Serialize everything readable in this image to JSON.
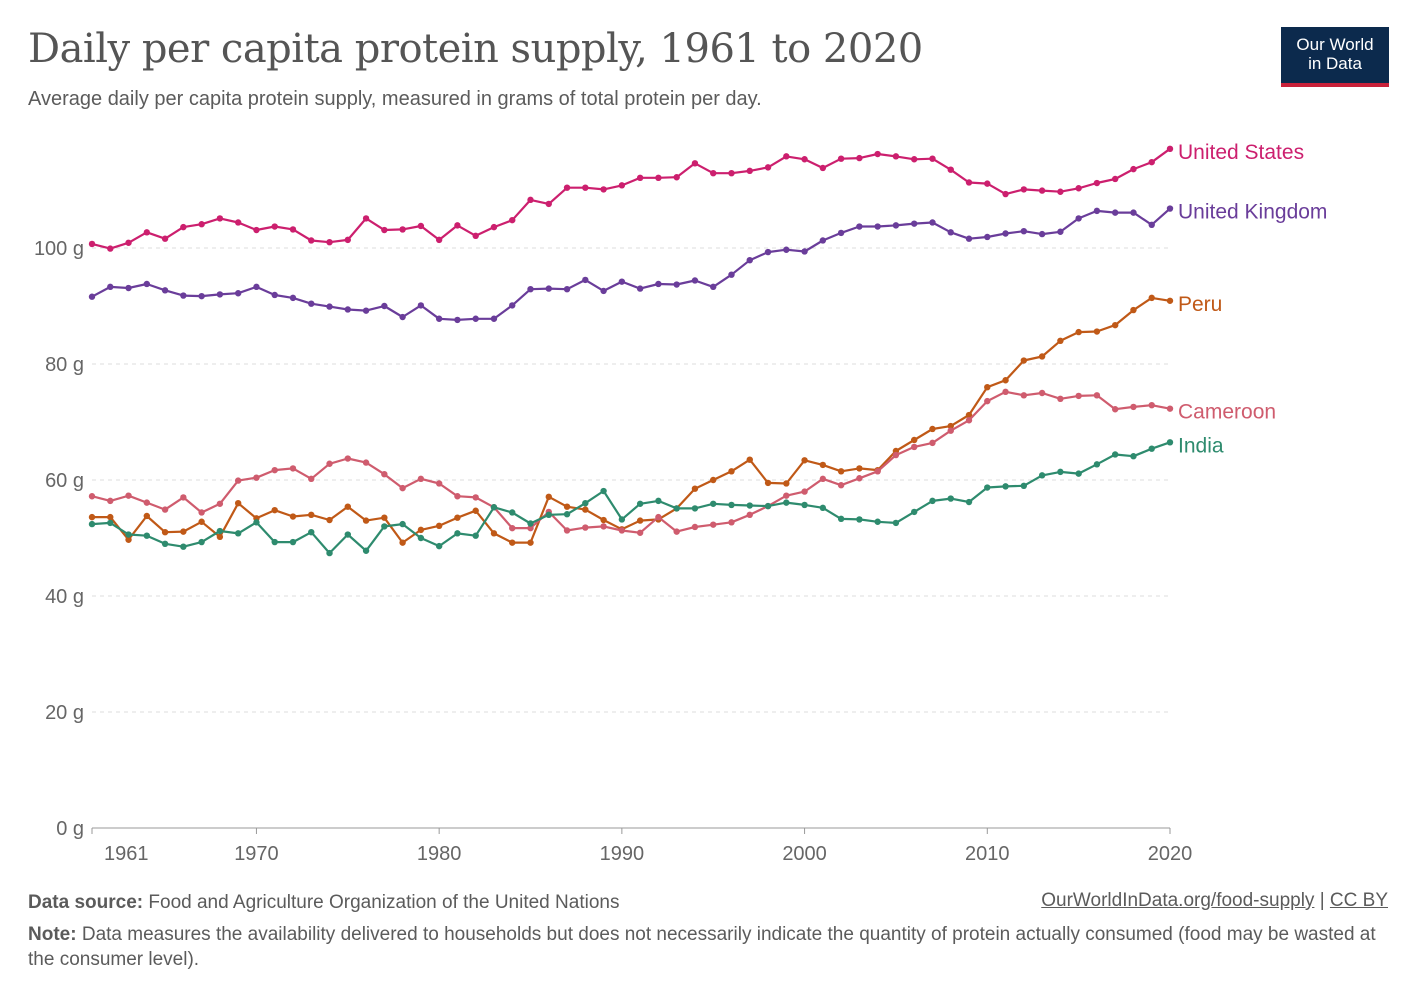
{
  "header": {
    "title": "Daily per capita protein supply, 1961 to 2020",
    "subtitle": "Average daily per capita protein supply, measured in grams of total protein per day.",
    "logo_line1": "Our World",
    "logo_line2": "in Data"
  },
  "footer": {
    "source_label": "Data source:",
    "source_text": "Food and Agriculture Organization of the United Nations",
    "link_text": "OurWorldInData.org/food-supply",
    "separator": "|",
    "license_text": "CC BY",
    "note_label": "Note:",
    "note_text": "Data measures the availability delivered to households but does not necessarily indicate the quantity of protein actually consumed (food may be wasted at the consumer level)."
  },
  "colors": {
    "logo_bg": "#0c2a4d",
    "logo_accent": "#c9213a",
    "grid": "#dddddd",
    "axis": "#999999"
  },
  "chart_data": {
    "type": "line",
    "title": "Daily per capita protein supply, 1961 to 2020",
    "xlabel": "",
    "ylabel": "",
    "xlim": [
      1961,
      2020
    ],
    "ylim": [
      0,
      120
    ],
    "x_ticks": [
      1961,
      1970,
      1980,
      1990,
      2000,
      2010,
      2020
    ],
    "x_tick_labels": [
      "1961",
      "1970",
      "1980",
      "1990",
      "2000",
      "2010",
      "2020"
    ],
    "y_ticks": [
      0,
      20,
      40,
      60,
      80,
      100
    ],
    "y_tick_labels": [
      "0 g",
      "20 g",
      "40 g",
      "60 g",
      "80 g",
      "100 g"
    ],
    "grid": true,
    "legend": "inline labels at line ends (right)",
    "x": [
      1961,
      1962,
      1963,
      1964,
      1965,
      1966,
      1967,
      1968,
      1969,
      1970,
      1971,
      1972,
      1973,
      1974,
      1975,
      1976,
      1977,
      1978,
      1979,
      1980,
      1981,
      1982,
      1983,
      1984,
      1985,
      1986,
      1987,
      1988,
      1989,
      1990,
      1991,
      1992,
      1993,
      1994,
      1995,
      1996,
      1997,
      1998,
      1999,
      2000,
      2001,
      2002,
      2003,
      2004,
      2005,
      2006,
      2007,
      2008,
      2009,
      2010,
      2011,
      2012,
      2013,
      2014,
      2015,
      2016,
      2017,
      2018,
      2019,
      2020
    ],
    "series": [
      {
        "name": "United States",
        "color": "#cc1f6e",
        "values": [
          100.7,
          99.9,
          100.9,
          102.7,
          101.6,
          103.6,
          104.1,
          105.1,
          104.4,
          103.1,
          103.7,
          103.2,
          101.3,
          101.0,
          101.4,
          105.1,
          103.1,
          103.2,
          103.8,
          101.4,
          103.9,
          102.1,
          103.6,
          104.8,
          108.3,
          107.6,
          110.4,
          110.4,
          110.1,
          110.8,
          112.1,
          112.1,
          112.2,
          114.6,
          112.9,
          112.9,
          113.3,
          113.9,
          115.8,
          115.3,
          113.8,
          115.4,
          115.5,
          116.2,
          115.8,
          115.3,
          115.4,
          113.5,
          111.3,
          111.1,
          109.3,
          110.1,
          109.9,
          109.7,
          110.3,
          111.2,
          111.9,
          113.6,
          114.8,
          117.1
        ]
      },
      {
        "name": "United Kingdom",
        "color": "#6a3d9a",
        "values": [
          91.6,
          93.3,
          93.1,
          93.8,
          92.7,
          91.8,
          91.7,
          92.0,
          92.2,
          93.3,
          91.9,
          91.4,
          90.4,
          89.9,
          89.4,
          89.2,
          90.0,
          88.1,
          90.1,
          87.8,
          87.6,
          87.8,
          87.8,
          90.1,
          92.9,
          93.0,
          92.9,
          94.5,
          92.6,
          94.2,
          93.0,
          93.8,
          93.7,
          94.4,
          93.3,
          95.4,
          97.9,
          99.3,
          99.7,
          99.4,
          101.3,
          102.6,
          103.7,
          103.7,
          103.9,
          104.2,
          104.4,
          102.7,
          101.6,
          101.9,
          102.5,
          102.9,
          102.4,
          102.8,
          105.1,
          106.4,
          106.1,
          106.1,
          104.0,
          106.8
        ]
      },
      {
        "name": "Peru",
        "color": "#c05917",
        "values": [
          53.6,
          53.6,
          49.7,
          53.8,
          51.0,
          51.1,
          52.8,
          50.2,
          56.0,
          53.4,
          54.8,
          53.7,
          54.0,
          53.1,
          55.4,
          53.0,
          53.5,
          49.2,
          51.4,
          52.1,
          53.5,
          54.7,
          50.8,
          49.2,
          49.2,
          57.1,
          55.4,
          54.9,
          53.1,
          51.5,
          53.0,
          53.2,
          55.1,
          58.5,
          60.0,
          61.5,
          63.5,
          59.5,
          59.4,
          63.4,
          62.6,
          61.5,
          62.0,
          61.7,
          65.0,
          66.9,
          68.8,
          69.3,
          71.2,
          76.0,
          77.2,
          80.6,
          81.3,
          84.0,
          85.5,
          85.6,
          86.7,
          89.3,
          91.4,
          90.9
        ]
      },
      {
        "name": "Cameroon",
        "color": "#cf5c6e",
        "values": [
          57.2,
          56.4,
          57.3,
          56.1,
          54.9,
          57.0,
          54.4,
          55.9,
          59.9,
          60.4,
          61.7,
          62.0,
          60.2,
          62.8,
          63.7,
          63.0,
          61.0,
          58.6,
          60.2,
          59.4,
          57.2,
          57.0,
          55.3,
          51.7,
          51.7,
          54.5,
          51.3,
          51.8,
          52.0,
          51.3,
          50.9,
          53.6,
          51.1,
          51.9,
          52.3,
          52.7,
          54.0,
          55.5,
          57.3,
          58.0,
          60.2,
          59.1,
          60.3,
          61.5,
          64.3,
          65.7,
          66.4,
          68.5,
          70.3,
          73.6,
          75.2,
          74.6,
          75.0,
          74.0,
          74.5,
          74.6,
          72.2,
          72.6,
          72.9,
          72.3
        ]
      },
      {
        "name": "India",
        "color": "#2e8b6e",
        "values": [
          52.4,
          52.6,
          50.6,
          50.4,
          49.0,
          48.5,
          49.3,
          51.2,
          50.8,
          52.7,
          49.3,
          49.3,
          51.0,
          47.4,
          50.6,
          47.8,
          52.0,
          52.4,
          50.0,
          48.6,
          50.8,
          50.4,
          55.3,
          54.4,
          52.5,
          54.0,
          54.1,
          56.0,
          58.1,
          53.2,
          55.9,
          56.4,
          55.1,
          55.1,
          55.9,
          55.7,
          55.6,
          55.5,
          56.1,
          55.7,
          55.2,
          53.3,
          53.2,
          52.8,
          52.6,
          54.5,
          56.4,
          56.8,
          56.2,
          58.7,
          58.9,
          59.0,
          60.8,
          61.4,
          61.1,
          62.7,
          64.4,
          64.1,
          65.4,
          66.5
        ]
      }
    ]
  }
}
